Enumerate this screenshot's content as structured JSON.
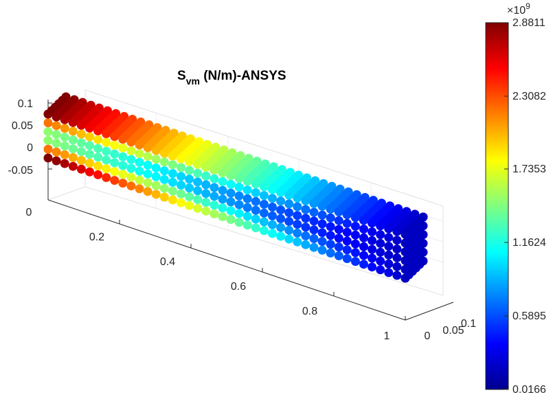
{
  "chart_data": {
    "type": "scatter3d",
    "title": {
      "main": "S",
      "subscript": "vm",
      "rest": " (N/m)-ANSYS"
    },
    "x_axis": {
      "ticks": [
        "0",
        "0.2",
        "0.4",
        "0.6",
        "0.8",
        "1"
      ]
    },
    "y_axis": {
      "ticks": [
        "0",
        "0.05",
        "0.1"
      ]
    },
    "z_axis": {
      "ticks": [
        "-0.05",
        "0",
        "0.05",
        "0.1"
      ]
    },
    "colormap": "jet",
    "colorbar": {
      "exponent_label": "×10",
      "exponent": "9",
      "ticks": [
        "2.8811",
        "2.3082",
        "1.7353",
        "1.1624",
        "0.5895",
        "0.0166"
      ],
      "min": 0.0166,
      "max": 2.8811
    },
    "grid": true,
    "description_values": {
      "beam_length": 1,
      "beam_width": 0.1,
      "beam_height": 0.1
    }
  }
}
